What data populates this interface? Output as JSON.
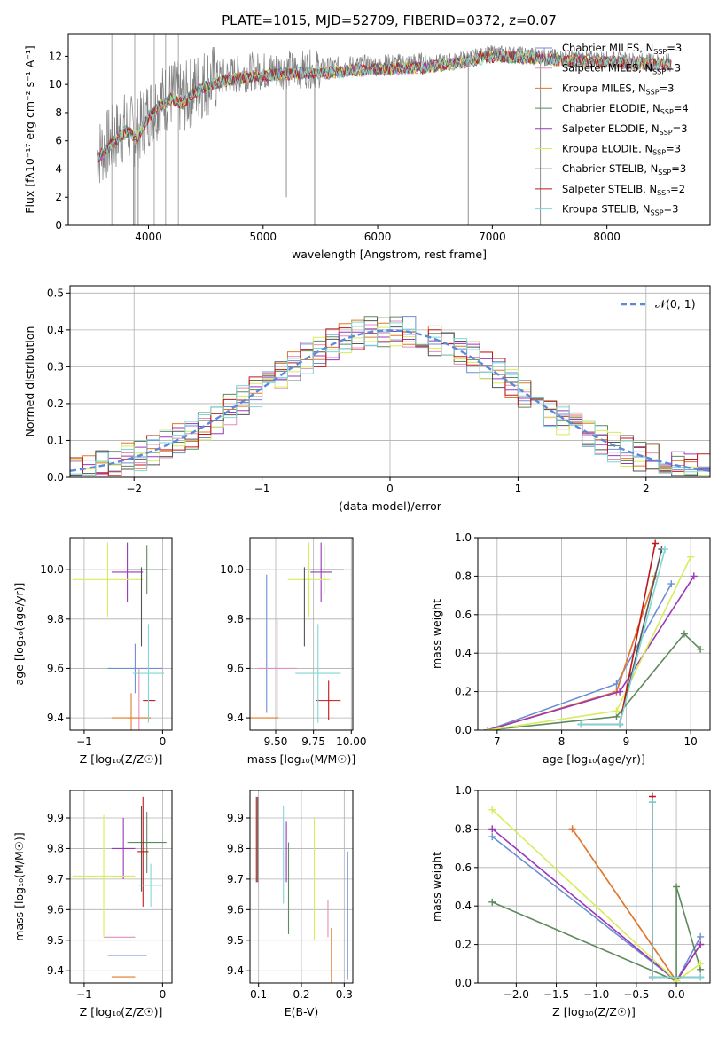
{
  "colors": {
    "chabrier_miles": "#6a8fd6",
    "salpeter_miles": "#e58db8",
    "kroupa_miles": "#e07a2a",
    "chabrier_elodie": "#5e8a5e",
    "salpeter_elodie": "#9a38b8",
    "kroupa_elodie": "#d8ec5a",
    "chabrier_stelib": "#555555",
    "salpeter_stelib": "#c01818",
    "kroupa_stelib": "#7fd6d6",
    "observed": "#808080",
    "normal_curve": "#5b8ad6"
  },
  "chart_data": [
    {
      "id": "spectrum",
      "type": "line",
      "title": "PLATE=1015, MJD=52709, FIBERID=0372, z=0.07",
      "xlabel": "wavelength [Angstrom, rest frame]",
      "ylabel": "Flux [fλ10⁻¹⁷ erg cm⁻² s⁻¹ A⁻¹]",
      "xlim": [
        3300,
        8900
      ],
      "ylim": [
        0,
        13.6
      ],
      "xticks": [
        "4000",
        "5000",
        "6000",
        "7000",
        "8000"
      ],
      "yticks": [
        "0",
        "2",
        "4",
        "6",
        "8",
        "10",
        "12"
      ],
      "grid": false,
      "legend_position": "top-right",
      "legend": [
        {
          "pre": "Chabrier MILES, N",
          "sub": "SSP",
          "post": "=3",
          "color_key": "chabrier_miles"
        },
        {
          "pre": "Salpeter MILES, N",
          "sub": "SSP",
          "post": "=3",
          "color_key": "salpeter_miles"
        },
        {
          "pre": "Kroupa MILES, N",
          "sub": "SSP",
          "post": "=3",
          "color_key": "kroupa_miles"
        },
        {
          "pre": "Chabrier ELODIE, N",
          "sub": "SSP",
          "post": "=4",
          "color_key": "chabrier_elodie"
        },
        {
          "pre": "Salpeter ELODIE, N",
          "sub": "SSP",
          "post": "=3",
          "color_key": "salpeter_elodie"
        },
        {
          "pre": "Kroupa ELODIE, N",
          "sub": "SSP",
          "post": "=3",
          "color_key": "kroupa_elodie"
        },
        {
          "pre": "Chabrier STELIB, N",
          "sub": "SSP",
          "post": "=3",
          "color_key": "chabrier_stelib"
        },
        {
          "pre": "Salpeter STELIB, N",
          "sub": "SSP",
          "post": "=2",
          "color_key": "salpeter_stelib"
        },
        {
          "pre": "Kroupa STELIB, N",
          "sub": "SSP",
          "post": "=3",
          "color_key": "kroupa_stelib"
        }
      ],
      "continuum_wavelength": [
        3550,
        3700,
        3800,
        3900,
        4000,
        4100,
        4200,
        4300,
        4400,
        4500,
        4700,
        4900,
        5100,
        5300,
        5500,
        5800,
        6100,
        6400,
        6700,
        7000,
        7300,
        7600,
        7900,
        8200,
        8500
      ],
      "continuum_flux": [
        5.0,
        6.2,
        7.0,
        6.5,
        8.0,
        8.8,
        9.3,
        8.9,
        9.7,
        10.2,
        10.6,
        10.9,
        11.0,
        11.1,
        11.1,
        11.3,
        11.4,
        11.5,
        11.8,
        12.3,
        12.2,
        12.0,
        11.9,
        11.8,
        11.7
      ],
      "sharp_features": [
        {
          "wavelength": 3870,
          "value": 0.0
        },
        {
          "wavelength": 3910,
          "value": 0.0
        },
        {
          "wavelength": 5203,
          "value": 2.0
        },
        {
          "wavelength": 5450,
          "value": 0.0
        },
        {
          "wavelength": 6790,
          "value": 0.0
        },
        {
          "wavelength": 7420,
          "value": 0.0
        }
      ]
    },
    {
      "id": "residual-histogram",
      "type": "bar",
      "xlabel": "(data-model)/error",
      "ylabel": "Normed distribution",
      "xlim": [
        -2.5,
        2.5
      ],
      "ylim": [
        0,
        0.52
      ],
      "xticks": [
        "−2",
        "−1",
        "0",
        "1",
        "2"
      ],
      "yticks": [
        "0.0",
        "0.1",
        "0.2",
        "0.3",
        "0.4",
        "0.5"
      ],
      "grid": true,
      "legend_position": "top-right",
      "legend": [
        {
          "label": "𝒩(0, 1)",
          "color_key": "normal_curve"
        }
      ],
      "bin_width": 0.1,
      "bins_from": -2.5,
      "series_count": 9,
      "reference_curve": "standard normal density"
    },
    {
      "id": "age-vs-z",
      "type": "scatter",
      "xlabel": "Z [log₁₀(Z/Z☉)]",
      "ylabel": "age  [log₁₀(age/yr)]",
      "xlim": [
        -1.18,
        0.12
      ],
      "ylim": [
        9.35,
        10.13
      ],
      "xticks": [
        "−1",
        "0"
      ],
      "yticks": [
        "9.4",
        "9.6",
        "9.8",
        "10.0"
      ],
      "grid": true,
      "points": [
        {
          "key": "chabrier_miles",
          "x": -0.35,
          "y": 9.6,
          "xerr": 0.35,
          "yerr": 0.1
        },
        {
          "key": "salpeter_miles",
          "x": -0.3,
          "y": 9.4,
          "xerr": 0.15,
          "yerr": 0.2
        },
        {
          "key": "kroupa_miles",
          "x": -0.4,
          "y": 9.4,
          "xerr": 0.25,
          "yerr": 0.1
        },
        {
          "key": "chabrier_elodie",
          "x": -0.2,
          "y": 10.0,
          "xerr": 0.25,
          "yerr": 0.1
        },
        {
          "key": "salpeter_elodie",
          "x": -0.45,
          "y": 9.99,
          "xerr": 0.2,
          "yerr": 0.12
        },
        {
          "key": "kroupa_elodie",
          "x": -0.7,
          "y": 9.96,
          "xerr": 0.45,
          "yerr": 0.15
        },
        {
          "key": "chabrier_stelib",
          "x": -0.27,
          "y": 9.85,
          "xerr": 0.0,
          "yerr": 0.16
        },
        {
          "key": "salpeter_stelib",
          "x": -0.17,
          "y": 9.47,
          "xerr": 0.08,
          "yerr": 0.0
        },
        {
          "key": "kroupa_stelib",
          "x": -0.18,
          "y": 9.58,
          "xerr": 0.2,
          "yerr": 0.2
        }
      ]
    },
    {
      "id": "age-vs-mass",
      "type": "scatter",
      "xlabel": "mass [log₁₀(M/M☉)]",
      "ylabel": "",
      "xlim": [
        9.33,
        10.01
      ],
      "ylim": [
        9.35,
        10.13
      ],
      "xticks": [
        "9.50",
        "9.75",
        "10.00"
      ],
      "yticks": [
        "9.4",
        "9.6",
        "9.8",
        "10.0"
      ],
      "grid": true,
      "points": [
        {
          "key": "chabrier_miles",
          "x": 9.44,
          "y": 9.7,
          "xerr": 0.0,
          "yerr": 0.28
        },
        {
          "key": "salpeter_miles",
          "x": 9.51,
          "y": 9.6,
          "xerr": 0.13,
          "yerr": 0.2
        },
        {
          "key": "kroupa_miles",
          "x": 9.39,
          "y": 9.4,
          "xerr": 0.13,
          "yerr": 0.0
        },
        {
          "key": "chabrier_elodie",
          "x": 9.82,
          "y": 10.0,
          "xerr": 0.13,
          "yerr": 0.1
        },
        {
          "key": "salpeter_elodie",
          "x": 9.8,
          "y": 9.99,
          "xerr": 0.07,
          "yerr": 0.12
        },
        {
          "key": "kroupa_elodie",
          "x": 9.72,
          "y": 9.96,
          "xerr": 0.14,
          "yerr": 0.15
        },
        {
          "key": "chabrier_stelib",
          "x": 9.69,
          "y": 9.85,
          "xerr": 0.0,
          "yerr": 0.16
        },
        {
          "key": "salpeter_stelib",
          "x": 9.85,
          "y": 9.47,
          "xerr": 0.08,
          "yerr": 0.08
        },
        {
          "key": "kroupa_stelib",
          "x": 9.78,
          "y": 9.58,
          "xerr": 0.15,
          "yerr": 0.2
        }
      ]
    },
    {
      "id": "massweight-vs-age",
      "type": "line",
      "xlabel": "age  [log₁₀(age/yr)]",
      "ylabel": "mass weight",
      "xlim": [
        6.7,
        10.3
      ],
      "ylim": [
        0,
        1.0
      ],
      "xticks": [
        "7",
        "8",
        "9",
        "10"
      ],
      "yticks": [
        "0.0",
        "0.2",
        "0.4",
        "0.6",
        "0.8",
        "1.0"
      ],
      "grid": true,
      "series": [
        {
          "key": "chabrier_miles",
          "points": [
            [
              6.85,
              0.0
            ],
            [
              8.85,
              0.24
            ],
            [
              9.7,
              0.76
            ]
          ]
        },
        {
          "key": "salpeter_miles",
          "points": [
            [
              6.85,
              0.0
            ],
            [
              8.85,
              0.2
            ],
            [
              9.45,
              0.8
            ]
          ]
        },
        {
          "key": "kroupa_miles",
          "points": [
            [
              6.85,
              0.0
            ],
            [
              8.85,
              0.2
            ],
            [
              9.45,
              0.8
            ]
          ]
        },
        {
          "key": "chabrier_elodie",
          "points": [
            [
              6.85,
              0.0
            ],
            [
              8.85,
              0.07
            ],
            [
              9.9,
              0.5
            ],
            [
              10.15,
              0.42
            ]
          ]
        },
        {
          "key": "salpeter_elodie",
          "points": [
            [
              6.85,
              0.0
            ],
            [
              8.9,
              0.2
            ],
            [
              10.05,
              0.8
            ]
          ]
        },
        {
          "key": "kroupa_elodie",
          "points": [
            [
              6.85,
              0.0
            ],
            [
              8.85,
              0.1
            ],
            [
              10.0,
              0.9
            ]
          ]
        },
        {
          "key": "chabrier_stelib",
          "points": [
            [
              8.3,
              0.03
            ],
            [
              8.9,
              0.03
            ],
            [
              9.55,
              0.94
            ]
          ]
        },
        {
          "key": "salpeter_stelib",
          "points": [
            [
              8.9,
              0.03
            ],
            [
              9.45,
              0.97
            ]
          ]
        },
        {
          "key": "kroupa_stelib",
          "points": [
            [
              8.3,
              0.03
            ],
            [
              8.9,
              0.03
            ],
            [
              9.6,
              0.94
            ]
          ]
        }
      ]
    },
    {
      "id": "mass-vs-z",
      "type": "scatter",
      "xlabel": "Z [log₁₀(Z/Z☉)]",
      "ylabel": "mass [log₁₀(M/M☉)]",
      "xlim": [
        -1.18,
        0.12
      ],
      "ylim": [
        9.36,
        9.99
      ],
      "xticks": [
        "−1",
        "0"
      ],
      "yticks": [
        "9.4",
        "9.5",
        "9.6",
        "9.7",
        "9.8",
        "9.9"
      ],
      "grid": true,
      "points": [
        {
          "key": "chabrier_miles",
          "x": -0.45,
          "y": 9.45,
          "xerr": 0.25,
          "yerr": 0.0
        },
        {
          "key": "salpeter_miles",
          "x": -0.55,
          "y": 9.51,
          "xerr": 0.2,
          "yerr": 0.0
        },
        {
          "key": "kroupa_miles",
          "x": -0.5,
          "y": 9.38,
          "xerr": 0.15,
          "yerr": 0.0
        },
        {
          "key": "chabrier_elodie",
          "x": -0.2,
          "y": 9.82,
          "xerr": 0.25,
          "yerr": 0.1
        },
        {
          "key": "salpeter_elodie",
          "x": -0.5,
          "y": 9.8,
          "xerr": 0.15,
          "yerr": 0.1
        },
        {
          "key": "kroupa_elodie",
          "x": -0.75,
          "y": 9.71,
          "xerr": 0.4,
          "yerr": 0.2
        },
        {
          "key": "chabrier_stelib",
          "x": -0.27,
          "y": 9.8,
          "xerr": 0.0,
          "yerr": 0.14
        },
        {
          "key": "salpeter_stelib",
          "x": -0.25,
          "y": 9.79,
          "xerr": 0.07,
          "yerr": 0.18
        },
        {
          "key": "kroupa_stelib",
          "x": -0.15,
          "y": 9.68,
          "xerr": 0.15,
          "yerr": 0.07
        }
      ]
    },
    {
      "id": "mass-vs-ebv",
      "type": "scatter",
      "xlabel": "E(B-V)",
      "ylabel": "",
      "xlim": [
        0.08,
        0.32
      ],
      "ylim": [
        9.36,
        9.99
      ],
      "xticks": [
        "0.1",
        "0.2",
        "0.3"
      ],
      "yticks": [
        "9.4",
        "9.5",
        "9.6",
        "9.7",
        "9.8",
        "9.9"
      ],
      "grid": true,
      "points": [
        {
          "key": "chabrier_miles",
          "x": 0.308,
          "y": 9.58,
          "xerr": 0.0,
          "yerr": 0.21
        },
        {
          "key": "salpeter_miles",
          "x": 0.262,
          "y": 9.57,
          "xerr": 0.0,
          "yerr": 0.06
        },
        {
          "key": "kroupa_miles",
          "x": 0.27,
          "y": 9.45,
          "xerr": 0.0,
          "yerr": 0.09
        },
        {
          "key": "chabrier_elodie",
          "x": 0.17,
          "y": 9.67,
          "xerr": 0.0,
          "yerr": 0.15
        },
        {
          "key": "salpeter_elodie",
          "x": 0.165,
          "y": 9.79,
          "xerr": 0.0,
          "yerr": 0.1
        },
        {
          "key": "kroupa_elodie",
          "x": 0.23,
          "y": 9.7,
          "xerr": 0.0,
          "yerr": 0.2
        },
        {
          "key": "chabrier_stelib",
          "x": 0.098,
          "y": 9.83,
          "xerr": 0.0,
          "yerr": 0.14
        },
        {
          "key": "salpeter_stelib",
          "x": 0.095,
          "y": 9.83,
          "xerr": 0.0,
          "yerr": 0.14
        },
        {
          "key": "kroupa_stelib",
          "x": 0.158,
          "y": 9.78,
          "xerr": 0.0,
          "yerr": 0.16
        }
      ]
    },
    {
      "id": "massweight-vs-z",
      "type": "line",
      "xlabel": "Z [log₁₀(Z/Z☉)]",
      "ylabel": "mass weight",
      "xlim": [
        -2.48,
        0.42
      ],
      "ylim": [
        0,
        1.0
      ],
      "xticks": [
        "−2.0",
        "−1.5",
        "−1.0",
        "−0.5",
        "0.0"
      ],
      "yticks": [
        "0.0",
        "0.2",
        "0.4",
        "0.6",
        "0.8",
        "1.0"
      ],
      "grid": true,
      "series": [
        {
          "key": "chabrier_miles",
          "points": [
            [
              -2.3,
              0.76
            ],
            [
              0.0,
              0.01
            ],
            [
              0.3,
              0.24
            ]
          ]
        },
        {
          "key": "salpeter_miles",
          "points": [
            [
              -1.3,
              0.8
            ],
            [
              0.0,
              0.01
            ],
            [
              0.3,
              0.2
            ]
          ]
        },
        {
          "key": "kroupa_miles",
          "points": [
            [
              -1.3,
              0.8
            ],
            [
              0.0,
              0.01
            ],
            [
              0.3,
              0.2
            ]
          ]
        },
        {
          "key": "chabrier_elodie",
          "points": [
            [
              -2.3,
              0.42
            ],
            [
              0.0,
              0.01
            ],
            [
              0.0,
              0.5
            ],
            [
              0.3,
              0.07
            ]
          ]
        },
        {
          "key": "salpeter_elodie",
          "points": [
            [
              -2.3,
              0.8
            ],
            [
              0.0,
              0.01
            ],
            [
              0.3,
              0.2
            ]
          ]
        },
        {
          "key": "kroupa_elodie",
          "points": [
            [
              -2.3,
              0.9
            ],
            [
              0.0,
              0.01
            ],
            [
              0.3,
              0.1
            ]
          ]
        },
        {
          "key": "chabrier_stelib",
          "points": [
            [
              -0.3,
              0.94
            ],
            [
              -0.3,
              0.03
            ],
            [
              0.3,
              0.03
            ]
          ]
        },
        {
          "key": "salpeter_stelib",
          "points": [
            [
              -0.3,
              0.97
            ],
            [
              -0.3,
              0.03
            ]
          ]
        },
        {
          "key": "kroupa_stelib",
          "points": [
            [
              -0.3,
              0.94
            ],
            [
              -0.3,
              0.03
            ],
            [
              0.3,
              0.03
            ]
          ]
        }
      ]
    }
  ]
}
